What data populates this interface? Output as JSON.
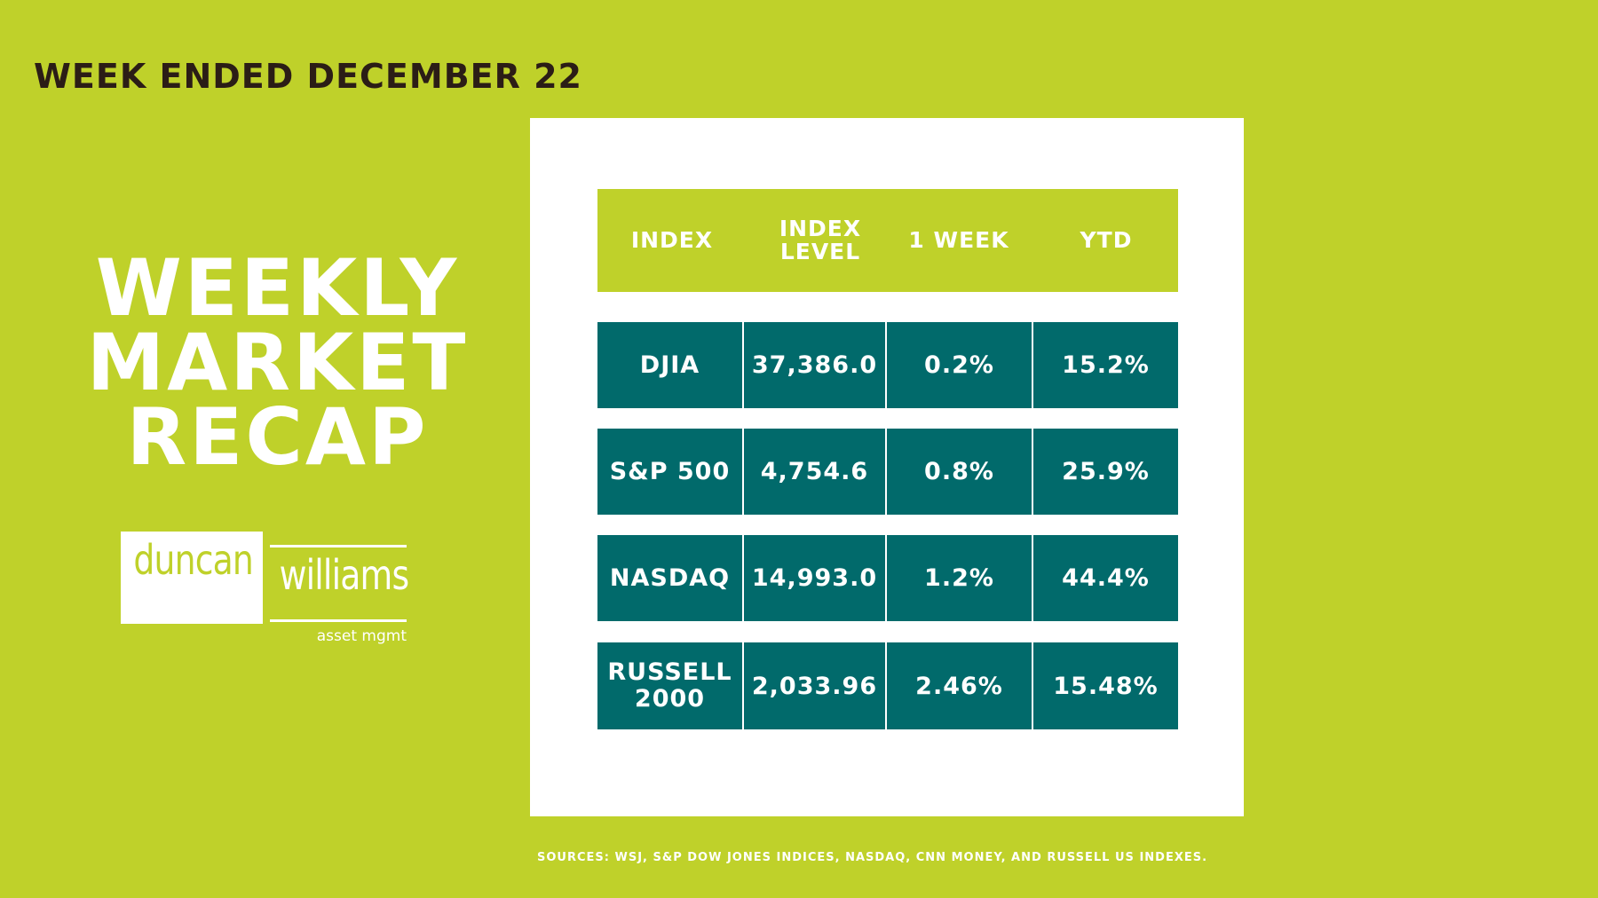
{
  "header": {
    "week_label": "WEEK ENDED DECEMBER 22"
  },
  "hero": {
    "line1": "WEEKLY",
    "line2": "MARKET",
    "line3": "RECAP"
  },
  "logo": {
    "left_word": "duncan",
    "right_word": "williams",
    "tagline": "asset mgmt"
  },
  "colors": {
    "background": "#bfd12a",
    "panel": "#ffffff",
    "row": "#016a6b",
    "title": "#2b1d16"
  },
  "chart_data": {
    "type": "table",
    "columns": [
      "INDEX",
      "INDEX LEVEL",
      "1 WEEK",
      "YTD"
    ],
    "rows": [
      {
        "index": "DJIA",
        "level": "37,386.0",
        "week": "0.2%",
        "ytd": "15.2%"
      },
      {
        "index": "S&P 500",
        "level": "4,754.6",
        "week": "0.8%",
        "ytd": "25.9%"
      },
      {
        "index": "NASDAQ",
        "level": "14,993.0",
        "week": "1.2%",
        "ytd": "44.4%"
      },
      {
        "index": "RUSSELL 2000",
        "level": "2,033.96",
        "week": "2.46%",
        "ytd": "15.48%"
      }
    ]
  },
  "footer": {
    "sources": "SOURCES: WSJ, S&P DOW JONES INDICES, NASDAQ, CNN  MONEY, AND  RUSSELL US INDEXES."
  }
}
